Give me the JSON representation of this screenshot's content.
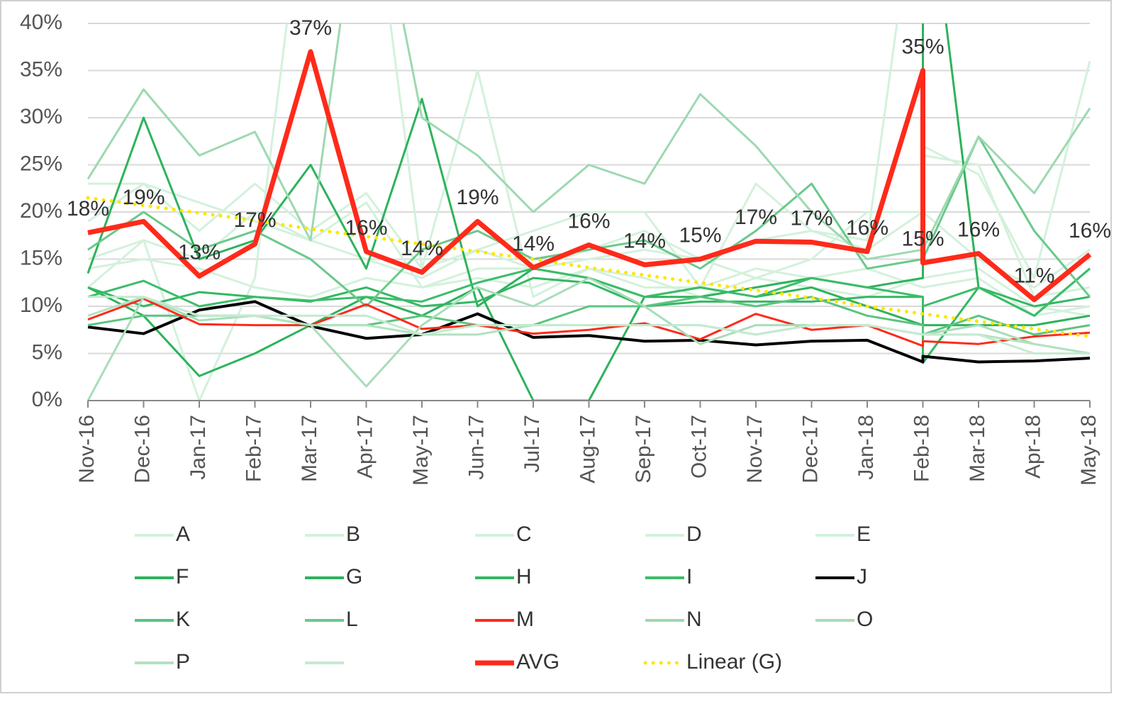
{
  "chart_data": {
    "type": "line",
    "categories": [
      "Nov-16",
      "Dec-16",
      "Jan-17",
      "Feb-17",
      "Mar-17",
      "Apr-17",
      "May-17",
      "Jun-17",
      "Jul-17",
      "Aug-17",
      "Sep-17",
      "Oct-17",
      "Nov-17",
      "Dec-17",
      "Jan-18",
      "Feb-18",
      null,
      "Mar-18",
      "Apr-18",
      "May-18"
    ],
    "ylim": [
      0,
      40
    ],
    "yticks": [
      {
        "value": 0,
        "label": "0%"
      },
      {
        "value": 5,
        "label": "5%"
      },
      {
        "value": 10,
        "label": "10%"
      },
      {
        "value": 15,
        "label": "15%"
      },
      {
        "value": 20,
        "label": "20%"
      },
      {
        "value": 25,
        "label": "25%"
      },
      {
        "value": 30,
        "label": "30%"
      },
      {
        "value": 35,
        "label": "35%"
      },
      {
        "value": 40,
        "label": "40%"
      }
    ],
    "grid": true,
    "legend": "bottom",
    "series": [
      {
        "name": "A",
        "color": "#d3f1dc",
        "values": [
          19,
          23,
          21,
          19,
          17,
          15,
          13,
          16,
          14,
          15,
          16,
          15,
          17,
          18,
          16,
          20,
          27,
          24,
          13,
          36
        ]
      },
      {
        "name": "B",
        "color": "#d3f1dc",
        "values": [
          12,
          17,
          0,
          13,
          60,
          60,
          14,
          35,
          11,
          14,
          12,
          12,
          14,
          13,
          14,
          12,
          12,
          13,
          9,
          10
        ]
      },
      {
        "name": "C",
        "color": "#d3f1dc",
        "values": [
          23,
          23,
          18,
          23,
          18,
          22,
          14,
          16,
          18,
          20,
          20,
          12,
          23,
          18,
          17,
          60,
          26,
          25,
          11,
          12
        ]
      },
      {
        "name": "D",
        "color": "#d3f1dc",
        "values": [
          15,
          17,
          15,
          20,
          17,
          21,
          12,
          14,
          14,
          16,
          18,
          15,
          13,
          15,
          20,
          20,
          20,
          15,
          12,
          16
        ]
      },
      {
        "name": "E",
        "color": "#d3f1dc",
        "values": [
          14,
          15,
          14,
          12,
          11,
          13,
          12,
          13,
          12,
          14,
          13,
          11,
          13,
          12,
          11,
          13,
          13,
          14,
          10,
          9
        ]
      },
      {
        "name": "F",
        "color": "#2db35b",
        "values": [
          13.5,
          30,
          15,
          17,
          25,
          14,
          32,
          10,
          14,
          13,
          11,
          11,
          12,
          13,
          12,
          13,
          60,
          12,
          9,
          14
        ]
      },
      {
        "name": "G",
        "color": "#2db35b",
        "values": [
          12,
          9,
          2.6,
          5,
          8,
          11,
          9,
          12,
          0,
          0,
          11,
          12,
          11,
          12,
          10,
          8,
          8,
          8,
          8,
          9
        ]
      },
      {
        "name": "H",
        "color": "#33b862",
        "values": [
          12,
          10,
          11.5,
          11,
          10.5,
          12,
          10,
          10.5,
          13,
          12.5,
          10,
          10.5,
          10.5,
          10.5,
          11,
          11,
          4,
          12,
          10,
          11
        ]
      },
      {
        "name": "I",
        "color": "#3bbd69",
        "values": [
          11,
          12.7,
          10,
          11,
          10.6,
          11,
          10.5,
          12.5,
          14,
          13,
          11,
          12,
          11,
          13,
          12,
          11,
          10,
          12,
          9,
          14
        ]
      },
      {
        "name": "J",
        "color": "#000000",
        "values": [
          7.8,
          7.1,
          9.6,
          10.5,
          7.9,
          6.6,
          7.0,
          9.2,
          6.7,
          6.9,
          6.3,
          6.4,
          5.9,
          6.3,
          6.4,
          4.1,
          4.7,
          4.1,
          4.2,
          4.5
        ]
      },
      {
        "name": "K",
        "color": "#5cc47f",
        "values": [
          8,
          9,
          9,
          9,
          8,
          8,
          9,
          8,
          8,
          10,
          10,
          11,
          10,
          11,
          9,
          8,
          7,
          9,
          7,
          8
        ]
      },
      {
        "name": "L",
        "color": "#6ac98a",
        "values": [
          16,
          20,
          16,
          18,
          15,
          10,
          16,
          18,
          15,
          16,
          17,
          14,
          18,
          23,
          14,
          15,
          15,
          28,
          18,
          11
        ]
      },
      {
        "name": "M",
        "color": "#ff2a1a",
        "values": [
          8.6,
          10.8,
          8.1,
          8.0,
          8.0,
          10.2,
          7.6,
          8.0,
          7.1,
          7.5,
          8.2,
          6.5,
          9.2,
          7.5,
          8.0,
          5.8,
          6.3,
          6.0,
          6.8,
          7.2
        ]
      },
      {
        "name": "N",
        "color": "#9dd9b0",
        "values": [
          23.5,
          33,
          26,
          28.5,
          17,
          60,
          30,
          26,
          20,
          25,
          23,
          32.5,
          27,
          20,
          15,
          16,
          16,
          28,
          22,
          31
        ]
      },
      {
        "name": "O",
        "color": "#a8ddb9",
        "values": [
          0,
          11,
          8.5,
          9,
          8,
          1.5,
          8,
          12,
          10,
          13,
          10,
          6,
          8,
          8,
          8,
          7,
          7,
          8,
          6,
          5
        ]
      },
      {
        "name": "P",
        "color": "#b2e2c1",
        "values": [
          9,
          11,
          9,
          9,
          8,
          8,
          7,
          7,
          8,
          8,
          8,
          8,
          7,
          8,
          8,
          7,
          7,
          7,
          6,
          5
        ]
      },
      {
        "color": "#c4ead0",
        "values": [
          11,
          11,
          9,
          9,
          9,
          9,
          7,
          8,
          8,
          8,
          8,
          8,
          7,
          8,
          8,
          7,
          7,
          7,
          5,
          5
        ]
      },
      {
        "name": "AVG",
        "color": "#ff2a1a",
        "values": [
          17.8,
          19,
          13.2,
          16.6,
          37,
          15.8,
          13.6,
          19,
          14.1,
          16.5,
          14.4,
          15,
          16.9,
          16.8,
          15.8,
          35,
          14.6,
          15.6,
          10.7,
          15.5
        ],
        "value_labels": [
          "18%",
          "19%",
          "13%",
          "17%",
          "37%",
          "16%",
          "14%",
          "19%",
          "14%",
          "16%",
          "14%",
          "15%",
          "17%",
          "17%",
          "16%",
          "35%",
          "15%",
          "16%",
          "11%",
          "16%"
        ]
      },
      {
        "name": "Linear  (G)",
        "color": "#ffe600",
        "dash": "dotted",
        "values": [
          21.5,
          20.7,
          19.9,
          19.1,
          18.2,
          17.4,
          16.6,
          15.8,
          15.0,
          14.1,
          13.3,
          12.5,
          11.7,
          10.9,
          10.0,
          9.2,
          9.2,
          8.4,
          7.6,
          6.8
        ]
      }
    ]
  }
}
